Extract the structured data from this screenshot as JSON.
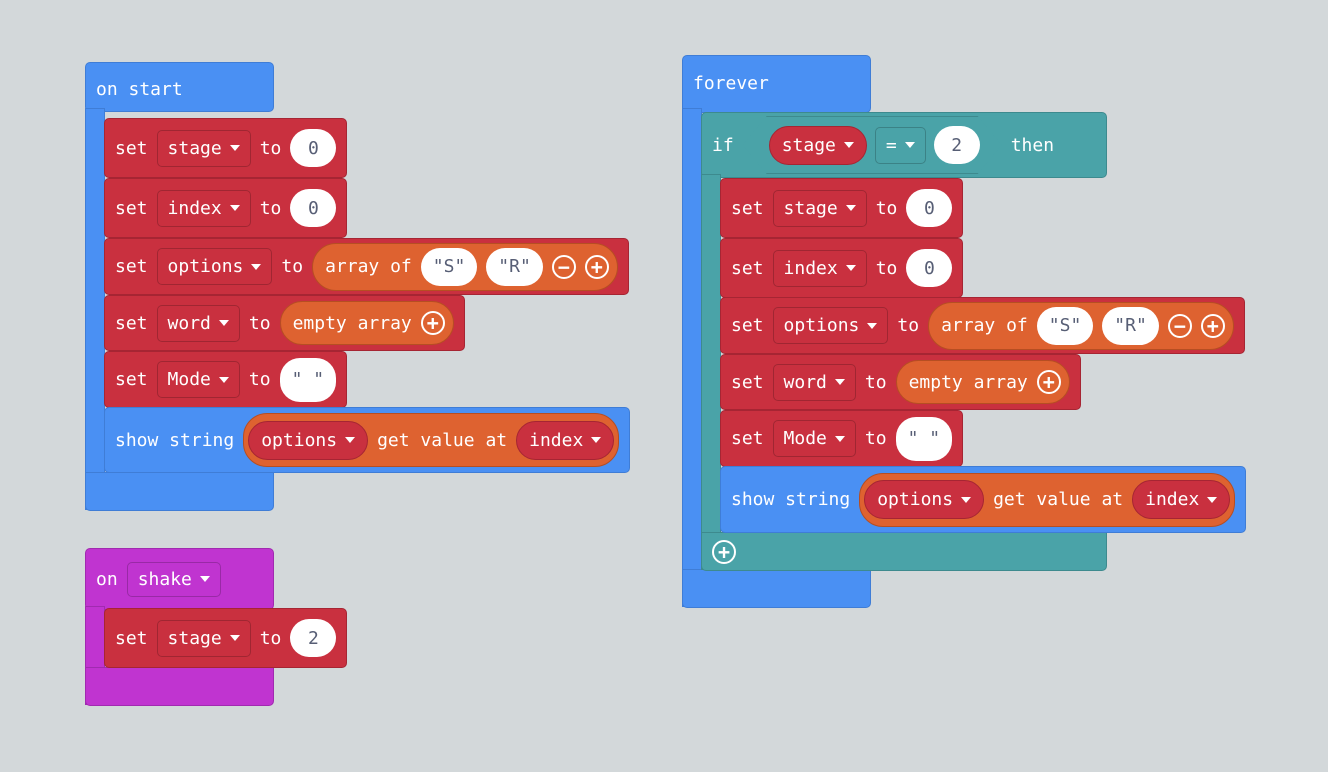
{
  "colors": {
    "events": "#4a90f3",
    "variables": "#c9303f",
    "logic": "#4aa3a8",
    "arrays": "#de6230",
    "input": "#c034d0",
    "workspace": "#ecf0f1"
  },
  "on_start": {
    "label": "on start",
    "rows": [
      {
        "kw": "set",
        "var": "stage",
        "to": "to",
        "value": "0"
      },
      {
        "kw": "set",
        "var": "index",
        "to": "to",
        "value": "0"
      },
      {
        "kw": "set",
        "var": "options",
        "to": "to",
        "array_label": "array of",
        "items": [
          "\"S\"",
          "\"R\""
        ]
      },
      {
        "kw": "set",
        "var": "word",
        "to": "to",
        "empty_label": "empty array"
      },
      {
        "kw": "set",
        "var": "Mode",
        "to": "to",
        "value": "\" \""
      }
    ],
    "show": {
      "label": "show string",
      "array": "options",
      "get": "get value at",
      "index": "index"
    }
  },
  "on_shake": {
    "on": "on",
    "gesture": "shake",
    "row": {
      "kw": "set",
      "var": "stage",
      "to": "to",
      "value": "2"
    }
  },
  "forever": {
    "label": "forever",
    "if": {
      "kw": "if",
      "var": "stage",
      "op": "=",
      "value": "2",
      "then": "then"
    },
    "rows": [
      {
        "kw": "set",
        "var": "stage",
        "to": "to",
        "value": "0"
      },
      {
        "kw": "set",
        "var": "index",
        "to": "to",
        "value": "0"
      },
      {
        "kw": "set",
        "var": "options",
        "to": "to",
        "array_label": "array of",
        "items": [
          "\"S\"",
          "\"R\""
        ]
      },
      {
        "kw": "set",
        "var": "word",
        "to": "to",
        "empty_label": "empty array"
      },
      {
        "kw": "set",
        "var": "Mode",
        "to": "to",
        "value": "\" \""
      }
    ],
    "show": {
      "label": "show string",
      "array": "options",
      "get": "get value at",
      "index": "index"
    }
  },
  "icons": {
    "minus": "minus-circle-icon",
    "plus": "plus-circle-icon",
    "dropdown": "caret-down-icon"
  }
}
